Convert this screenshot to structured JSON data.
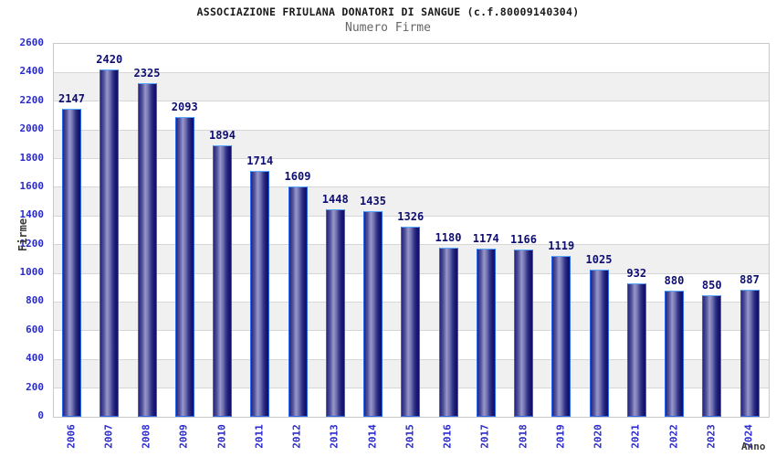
{
  "chart_data": {
    "type": "bar",
    "title": "ASSOCIAZIONE FRIULANA DONATORI DI SANGUE (c.f.80009140304)",
    "subtitle": "Numero Firme",
    "xlabel": "Anno",
    "ylabel": "Firme",
    "categories": [
      "2006",
      "2007",
      "2008",
      "2009",
      "2010",
      "2011",
      "2012",
      "2013",
      "2014",
      "2015",
      "2016",
      "2017",
      "2018",
      "2019",
      "2020",
      "2021",
      "2022",
      "2023",
      "2024"
    ],
    "values": [
      2147,
      2420,
      2325,
      2093,
      1894,
      1714,
      1609,
      1448,
      1435,
      1326,
      1180,
      1174,
      1166,
      1119,
      1025,
      932,
      880,
      850,
      887
    ],
    "ylim": [
      0,
      2600
    ],
    "ytick_step": 200,
    "grid": true,
    "legend_position": "none",
    "bar_labels_shown": true,
    "colors": {
      "tick_label": "#2a2acc",
      "value_label": "#0e0e72",
      "title": "#1a1a1a",
      "subtitle": "#666666",
      "axis_title": "#3a3a3a",
      "band_light": "#ffffff",
      "band_dark": "#f0f0f0",
      "gridline": "#d6d6d6",
      "plot_border": "#c9c9c9",
      "bar_dark": "#26267c",
      "bar_highlight": "#9898ca",
      "bar_border": "#2d68e8",
      "bar_border_top": "#57aaff"
    }
  }
}
